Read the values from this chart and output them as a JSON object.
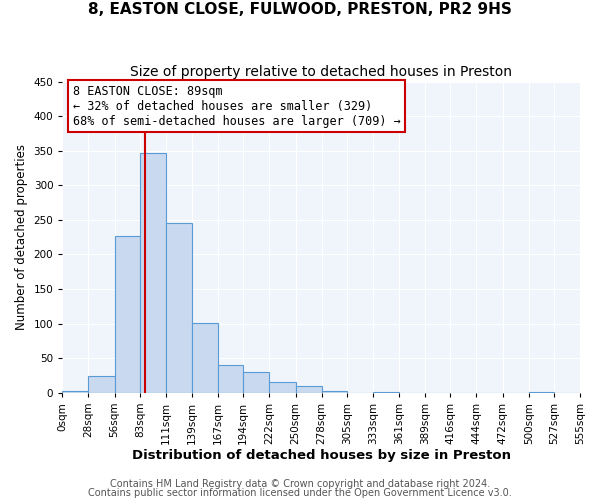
{
  "title": "8, EASTON CLOSE, FULWOOD, PRESTON, PR2 9HS",
  "subtitle": "Size of property relative to detached houses in Preston",
  "xlabel": "Distribution of detached houses by size in Preston",
  "ylabel": "Number of detached properties",
  "bin_edges": [
    0,
    28,
    56,
    83,
    111,
    139,
    167,
    194,
    222,
    250,
    278,
    305,
    333,
    361,
    389,
    416,
    444,
    472,
    500,
    527,
    555
  ],
  "bar_heights": [
    2,
    25,
    227,
    347,
    246,
    101,
    40,
    30,
    15,
    10,
    2,
    0,
    1,
    0,
    0,
    0,
    0,
    0,
    1,
    0
  ],
  "bar_color": "#c9d9f0",
  "bar_edgecolor": "#5b9bd5",
  "property_line_x": 89,
  "property_line_color": "#cc0000",
  "annotation_line1": "8 EASTON CLOSE: 89sqm",
  "annotation_line2": "← 32% of detached houses are smaller (329)",
  "annotation_line3": "68% of semi-detached houses are larger (709) →",
  "annotation_box_edgecolor": "#cc0000",
  "annotation_box_facecolor": "#ffffff",
  "ylim": [
    0,
    450
  ],
  "tick_labels": [
    "0sqm",
    "28sqm",
    "56sqm",
    "83sqm",
    "111sqm",
    "139sqm",
    "167sqm",
    "194sqm",
    "222sqm",
    "250sqm",
    "278sqm",
    "305sqm",
    "333sqm",
    "361sqm",
    "389sqm",
    "416sqm",
    "444sqm",
    "472sqm",
    "500sqm",
    "527sqm",
    "555sqm"
  ],
  "footer1": "Contains HM Land Registry data © Crown copyright and database right 2024.",
  "footer2": "Contains public sector information licensed under the Open Government Licence v3.0.",
  "title_fontsize": 11,
  "subtitle_fontsize": 10,
  "xlabel_fontsize": 9.5,
  "ylabel_fontsize": 8.5,
  "tick_fontsize": 7.5,
  "annotation_fontsize": 8.5,
  "footer_fontsize": 7,
  "bg_color": "#ffffff",
  "plot_bg_color": "#f0f4fb"
}
